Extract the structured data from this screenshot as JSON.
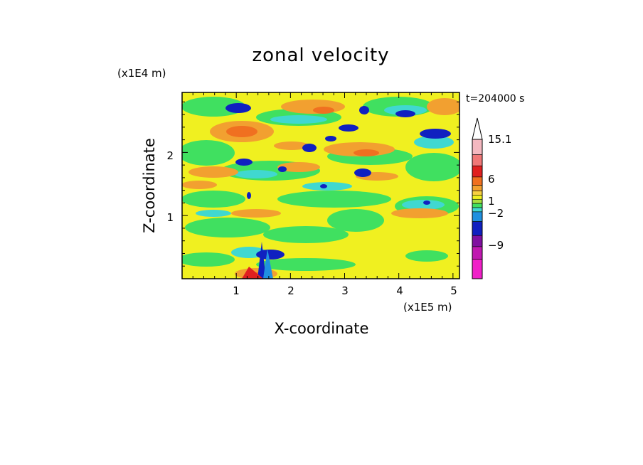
{
  "chart_data": {
    "type": "heatmap",
    "title": "zonal velocity",
    "xlabel": "X-coordinate",
    "ylabel": "Z-coordinate",
    "x_unit": "(x1E5 m)",
    "y_unit": "(x1E4 m)",
    "time_label": "t=204000 s",
    "xlim": [
      0,
      5.12
    ],
    "ylim": [
      0,
      2.95
    ],
    "x_ticks": [
      "1",
      "2",
      "3",
      "4",
      "5"
    ],
    "y_ticks": [
      "1",
      "2"
    ],
    "colorbar": {
      "levels": [
        "15.1",
        "6",
        "1",
        "−2",
        "−9"
      ],
      "colors": [
        "#f4b8c0",
        "#f07878",
        "#e02020",
        "#f07020",
        "#f2a030",
        "#f8d040",
        "#f0f020",
        "#a8e040",
        "#40e060",
        "#40d8d0",
        "#2090e0",
        "#1020c0",
        "#8010a0",
        "#c018b0",
        "#f020c8"
      ],
      "extend_top": true
    },
    "field_summary": "Zonal velocity u(x,z): mostly 0 to 3 m/s (yellow/green) with orange maxima ~3-6 m/s and blue minima ~-3 to -7 m/s in tilted bands; strong dipole near x=1.4-1.6E5 m, z<0.6E4 m."
  }
}
